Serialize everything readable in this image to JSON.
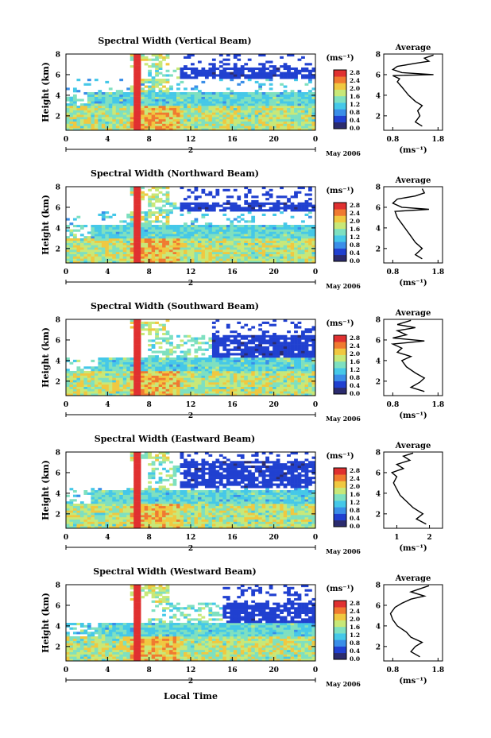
{
  "chart_data": [
    {
      "type": "heatmap",
      "title": "Spectral Width (Vertical Beam)",
      "ylabel": "Height (km)",
      "y_ticks": [
        "2",
        "4",
        "6",
        "8"
      ],
      "x_ticks": [
        "0",
        "4",
        "8",
        "12",
        "16",
        "20",
        "0"
      ],
      "ylim": [
        0.6,
        8
      ],
      "xlim": [
        0,
        24
      ],
      "date_tick": "2",
      "date_label": "May 2006",
      "unit_label": "(ms⁻¹)",
      "colorbar_ticks": [
        "2.8",
        "2.4",
        "2.0",
        "1.6",
        "1.2",
        "0.8",
        "0.4",
        "0.0"
      ],
      "colorbar_range": [
        0.0,
        2.8
      ],
      "upper_layer_km": [
        5.7,
        6.6
      ],
      "upper_layer_start_hour": 11,
      "upper_band_start_hour": 4,
      "average": {
        "title": "Average",
        "xlabel": "(ms⁻¹)",
        "x_ticks": [
          "0.8",
          "1.8"
        ],
        "xlim": [
          0.6,
          1.9
        ],
        "y_ticks": [
          "2",
          "4",
          "6",
          "8"
        ],
        "ylim": [
          0.6,
          8
        ],
        "profile": [
          [
            1.45,
            1.0
          ],
          [
            1.3,
            1.4
          ],
          [
            1.4,
            2.0
          ],
          [
            1.35,
            2.5
          ],
          [
            1.45,
            3.0
          ],
          [
            1.3,
            3.4
          ],
          [
            1.15,
            4.0
          ],
          [
            1.0,
            4.8
          ],
          [
            0.9,
            5.3
          ],
          [
            0.95,
            5.6
          ],
          [
            0.8,
            5.9
          ],
          [
            1.7,
            6.0
          ],
          [
            1.0,
            6.2
          ],
          [
            0.8,
            6.5
          ],
          [
            0.9,
            6.8
          ],
          [
            1.3,
            7.1
          ],
          [
            1.6,
            7.3
          ],
          [
            1.5,
            7.6
          ],
          [
            1.7,
            7.9
          ]
        ]
      }
    },
    {
      "type": "heatmap",
      "title": "Spectral Width (Northward Beam)",
      "ylabel": "Height (km)",
      "y_ticks": [
        "2",
        "4",
        "6",
        "8"
      ],
      "x_ticks": [
        "0",
        "4",
        "8",
        "12",
        "16",
        "20",
        "0"
      ],
      "ylim": [
        0.6,
        8
      ],
      "xlim": [
        0,
        24
      ],
      "date_tick": "2",
      "date_label": "May 2006",
      "unit_label": "(ms⁻¹)",
      "colorbar_ticks": [
        "2.8",
        "2.4",
        "2.0",
        "1.6",
        "1.2",
        "0.8",
        "0.4",
        "0.0"
      ],
      "colorbar_range": [
        0.0,
        2.8
      ],
      "upper_layer_km": [
        5.6,
        6.5
      ],
      "upper_layer_start_hour": 11,
      "upper_band_start_hour": 5,
      "average": {
        "title": "Average",
        "xlabel": "(ms⁻¹)",
        "x_ticks": [
          "0.8",
          "1.8"
        ],
        "xlim": [
          0.6,
          1.9
        ],
        "y_ticks": [
          "2",
          "4",
          "6",
          "8"
        ],
        "ylim": [
          0.6,
          8
        ],
        "profile": [
          [
            1.45,
            1.0
          ],
          [
            1.3,
            1.4
          ],
          [
            1.45,
            2.0
          ],
          [
            1.3,
            2.6
          ],
          [
            1.2,
            3.2
          ],
          [
            1.1,
            3.8
          ],
          [
            1.0,
            4.4
          ],
          [
            0.9,
            5.0
          ],
          [
            0.85,
            5.6
          ],
          [
            1.6,
            5.8
          ],
          [
            1.0,
            6.0
          ],
          [
            0.8,
            6.4
          ],
          [
            0.9,
            6.8
          ],
          [
            1.3,
            7.1
          ],
          [
            1.5,
            7.4
          ],
          [
            1.45,
            7.8
          ]
        ]
      }
    },
    {
      "type": "heatmap",
      "title": "Spectral Width (Southward Beam)",
      "ylabel": "Height (km)",
      "y_ticks": [
        "2",
        "4",
        "6",
        "8"
      ],
      "x_ticks": [
        "0",
        "4",
        "8",
        "12",
        "16",
        "20",
        "0"
      ],
      "ylim": [
        0.6,
        8
      ],
      "xlim": [
        0,
        24
      ],
      "date_tick": "2",
      "date_label": "May 2006",
      "unit_label": "(ms⁻¹)",
      "colorbar_ticks": [
        "2.8",
        "2.4",
        "2.0",
        "1.6",
        "1.2",
        "0.8",
        "0.4",
        "0.0"
      ],
      "colorbar_range": [
        0.0,
        2.8
      ],
      "upper_layer_km": [
        4.0,
        6.5
      ],
      "upper_layer_start_hour": 14,
      "upper_band_start_hour": 6,
      "average": {
        "title": "Average",
        "xlabel": "(ms⁻¹)",
        "x_ticks": [
          "0.8",
          "1.8"
        ],
        "xlim": [
          0.6,
          1.9
        ],
        "y_ticks": [
          "2",
          "4",
          "6",
          "8"
        ],
        "ylim": [
          0.6,
          8
        ],
        "profile": [
          [
            1.5,
            1.0
          ],
          [
            1.2,
            1.4
          ],
          [
            1.4,
            1.9
          ],
          [
            1.5,
            2.3
          ],
          [
            1.3,
            2.8
          ],
          [
            1.1,
            3.4
          ],
          [
            1.0,
            4.0
          ],
          [
            1.2,
            4.4
          ],
          [
            0.9,
            4.8
          ],
          [
            1.0,
            5.2
          ],
          [
            0.8,
            5.6
          ],
          [
            1.5,
            5.9
          ],
          [
            0.8,
            6.2
          ],
          [
            1.1,
            6.5
          ],
          [
            0.9,
            6.9
          ],
          [
            1.3,
            7.2
          ],
          [
            0.9,
            7.5
          ],
          [
            1.2,
            7.9
          ]
        ]
      }
    },
    {
      "type": "heatmap",
      "title": "Spectral Width (Eastward Beam)",
      "ylabel": "Height (km)",
      "y_ticks": [
        "2",
        "4",
        "6",
        "8"
      ],
      "x_ticks": [
        "0",
        "4",
        "8",
        "12",
        "16",
        "20",
        "0"
      ],
      "ylim": [
        0.6,
        8
      ],
      "xlim": [
        0,
        24
      ],
      "date_tick": "2",
      "date_label": "May 2006",
      "unit_label": "(ms⁻¹)",
      "colorbar_ticks": [
        "2.8",
        "2.4",
        "2.0",
        "1.6",
        "1.2",
        "0.8",
        "0.4",
        "0.0"
      ],
      "colorbar_range": [
        0.0,
        2.8
      ],
      "upper_layer_km": [
        4.5,
        7.2
      ],
      "upper_layer_start_hour": 11,
      "upper_band_start_hour": 5,
      "average": {
        "title": "Average",
        "xlabel": "(ms⁻¹)",
        "x_ticks": [
          "1",
          "2"
        ],
        "xlim": [
          0.6,
          2.4
        ],
        "y_ticks": [
          "2",
          "4",
          "6",
          "8"
        ],
        "ylim": [
          0.6,
          8
        ],
        "profile": [
          [
            1.9,
            1.0
          ],
          [
            1.6,
            1.5
          ],
          [
            1.8,
            2.0
          ],
          [
            1.5,
            2.6
          ],
          [
            1.3,
            3.2
          ],
          [
            1.1,
            3.8
          ],
          [
            1.0,
            4.4
          ],
          [
            0.9,
            5.0
          ],
          [
            1.0,
            5.6
          ],
          [
            0.85,
            6.0
          ],
          [
            1.2,
            6.4
          ],
          [
            1.0,
            6.8
          ],
          [
            1.4,
            7.2
          ],
          [
            1.2,
            7.6
          ],
          [
            1.5,
            7.9
          ]
        ]
      }
    },
    {
      "type": "heatmap",
      "title": "Spectral Width (Westward Beam)",
      "ylabel": "Height (km)",
      "y_ticks": [
        "2",
        "4",
        "6",
        "8"
      ],
      "x_ticks": [
        "0",
        "4",
        "8",
        "12",
        "16",
        "20",
        "0"
      ],
      "ylim": [
        0.6,
        8
      ],
      "xlim": [
        0,
        24
      ],
      "date_tick": "2",
      "date_label": "May 2006",
      "unit_label": "(ms⁻¹)",
      "colorbar_ticks": [
        "2.8",
        "2.4",
        "2.0",
        "1.6",
        "1.2",
        "0.8",
        "0.4",
        "0.0"
      ],
      "colorbar_range": [
        0.0,
        2.8
      ],
      "upper_layer_km": [
        3.8,
        6.2
      ],
      "upper_layer_start_hour": 15,
      "upper_band_start_hour": 6,
      "average": {
        "title": "Average",
        "xlabel": "(ms⁻¹)",
        "x_ticks": [
          "0.8",
          "1.8"
        ],
        "xlim": [
          0.6,
          1.9
        ],
        "y_ticks": [
          "2",
          "4",
          "6",
          "8"
        ],
        "ylim": [
          0.6,
          8
        ],
        "profile": [
          [
            1.4,
            1.0
          ],
          [
            1.2,
            1.5
          ],
          [
            1.3,
            2.0
          ],
          [
            1.45,
            2.4
          ],
          [
            1.2,
            2.9
          ],
          [
            1.1,
            3.4
          ],
          [
            0.9,
            4.0
          ],
          [
            0.8,
            4.6
          ],
          [
            0.75,
            5.2
          ],
          [
            0.85,
            5.8
          ],
          [
            1.0,
            6.2
          ],
          [
            1.2,
            6.6
          ],
          [
            1.5,
            6.9
          ],
          [
            1.2,
            7.3
          ],
          [
            1.4,
            7.6
          ],
          [
            1.6,
            7.9
          ]
        ]
      }
    }
  ],
  "footer": {
    "xlabel": "Local Time"
  },
  "colors": {
    "colorscale": [
      "#2b2b6e",
      "#2040d0",
      "#3a8ee8",
      "#45c8e8",
      "#7ee0c0",
      "#c8e878",
      "#f0c840",
      "#f07a30",
      "#e03030"
    ]
  }
}
